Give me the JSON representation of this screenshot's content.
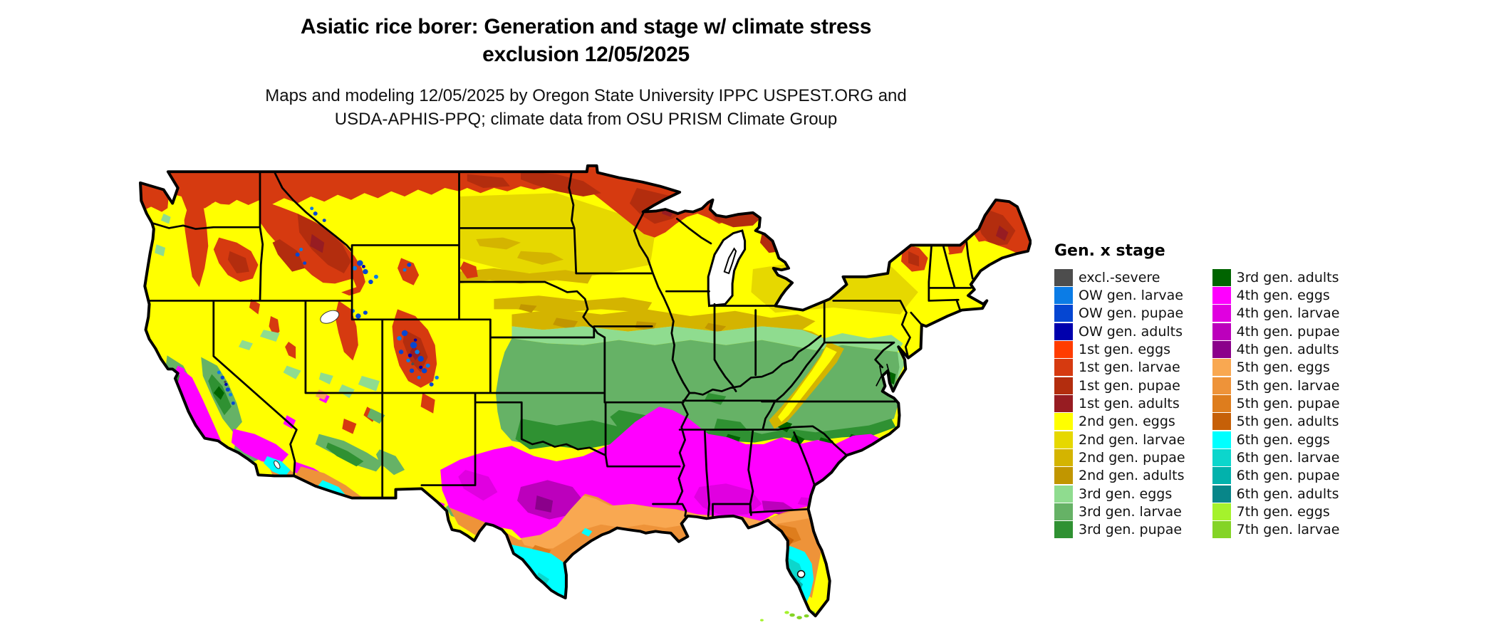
{
  "title": {
    "line1": "Asiatic rice borer: Generation and stage w/ climate stress",
    "line2": "exclusion 12/05/2025"
  },
  "subtitle": {
    "line1": "Maps and modeling 12/05/2025 by Oregon State University IPPC USPEST.ORG and",
    "line2": "USDA-APHIS-PPQ; climate data from OSU PRISM Climate Group"
  },
  "legend": {
    "title": "Gen. x stage",
    "columns": [
      [
        {
          "key": "excl-severe",
          "label": "excl.-severe",
          "color": "#4d4d4d"
        },
        {
          "key": "ow-larvae",
          "label": "OW gen. larvae",
          "color": "#0b7ce6"
        },
        {
          "key": "ow-pupae",
          "label": "OW gen. pupae",
          "color": "#0546d2"
        },
        {
          "key": "ow-adults",
          "label": "OW gen. adults",
          "color": "#0000ad"
        },
        {
          "key": "g1-eggs",
          "label": "1st gen. eggs",
          "color": "#ff3c00"
        },
        {
          "key": "g1-larvae",
          "label": "1st gen. larvae",
          "color": "#d63a10"
        },
        {
          "key": "g1-pupae",
          "label": "1st gen. pupae",
          "color": "#b32d0e"
        },
        {
          "key": "g1-adults",
          "label": "1st gen. adults",
          "color": "#971c22"
        },
        {
          "key": "g2-eggs",
          "label": "2nd gen. eggs",
          "color": "#ffff00"
        },
        {
          "key": "g2-larvae",
          "label": "2nd gen. larvae",
          "color": "#e6d800"
        },
        {
          "key": "g2-pupae",
          "label": "2nd gen. pupae",
          "color": "#d4b400"
        },
        {
          "key": "g2-adults",
          "label": "2nd gen. adults",
          "color": "#c19600"
        },
        {
          "key": "g3-eggs",
          "label": "3rd gen. eggs",
          "color": "#8fdc8f"
        },
        {
          "key": "g3-larvae",
          "label": "3rd gen. larvae",
          "color": "#66b266"
        },
        {
          "key": "g3-pupae",
          "label": "3rd gen. pupae",
          "color": "#2f9132"
        }
      ],
      [
        {
          "key": "g3-adults",
          "label": "3rd gen. adults",
          "color": "#006400"
        },
        {
          "key": "g4-eggs",
          "label": "4th gen. eggs",
          "color": "#ff00ff"
        },
        {
          "key": "g4-larvae",
          "label": "4th gen. larvae",
          "color": "#e000e0"
        },
        {
          "key": "g4-pupae",
          "label": "4th gen. pupae",
          "color": "#bc00bc"
        },
        {
          "key": "g4-adults",
          "label": "4th gen. adults",
          "color": "#8b008b"
        },
        {
          "key": "g5-eggs",
          "label": "5th gen. eggs",
          "color": "#f9a851"
        },
        {
          "key": "g5-larvae",
          "label": "5th gen. larvae",
          "color": "#ee9339"
        },
        {
          "key": "g5-pupae",
          "label": "5th gen. pupae",
          "color": "#de7d1d"
        },
        {
          "key": "g5-adults",
          "label": "5th gen. adults",
          "color": "#c66008"
        },
        {
          "key": "g6-eggs",
          "label": "6th gen. eggs",
          "color": "#00ffff"
        },
        {
          "key": "g6-larvae",
          "label": "6th gen. larvae",
          "color": "#0cd6cc"
        },
        {
          "key": "g6-pupae",
          "label": "6th gen. pupae",
          "color": "#02b2ac"
        },
        {
          "key": "g6-adults",
          "label": "6th gen. adults",
          "color": "#088689"
        },
        {
          "key": "g7-eggs",
          "label": "7th gen. eggs",
          "color": "#a5f22c"
        },
        {
          "key": "g7-larvae",
          "label": "7th gen. larvae",
          "color": "#84d426"
        }
      ]
    ]
  }
}
